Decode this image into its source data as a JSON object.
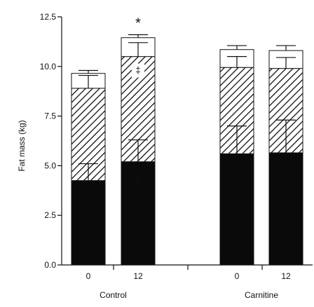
{
  "chart_data": {
    "type": "bar",
    "stacked": true,
    "ylabel": "Fat mass (kg)",
    "ylim": [
      0,
      12.5
    ],
    "yticks": [
      "0.0",
      "2.5",
      "5.0",
      "7.5",
      "10.0",
      "12.5"
    ],
    "groups": [
      {
        "label": "Control",
        "bars": [
          "0",
          "12"
        ]
      },
      {
        "label": "Carnitine",
        "bars": [
          "0",
          "12"
        ]
      }
    ],
    "categories": [
      "Control 0",
      "Control 12",
      "Carnitine 0",
      "Carnitine 12"
    ],
    "series": [
      {
        "pattern": "solid-black",
        "values": [
          4.25,
          5.2,
          5.6,
          5.65
        ],
        "errors": [
          0.85,
          1.1,
          1.4,
          1.65
        ]
      },
      {
        "pattern": "diagonal-hatch",
        "values": [
          4.65,
          5.3,
          4.35,
          4.25
        ],
        "errors": [
          0.65,
          0.7,
          0.55,
          0.55
        ]
      },
      {
        "pattern": "white",
        "values": [
          0.75,
          0.95,
          0.9,
          0.9
        ],
        "errors": [
          0.15,
          0.15,
          0.2,
          0.25
        ]
      }
    ],
    "annotations": [
      {
        "text": "*",
        "bar": 1,
        "where": "above bar"
      },
      {
        "text": "‡",
        "bar": 1,
        "where": "inside black segment"
      },
      {
        "text": "‡",
        "bar": 1,
        "where": "inside hatched segment"
      }
    ],
    "grid": false,
    "legend": "none"
  }
}
